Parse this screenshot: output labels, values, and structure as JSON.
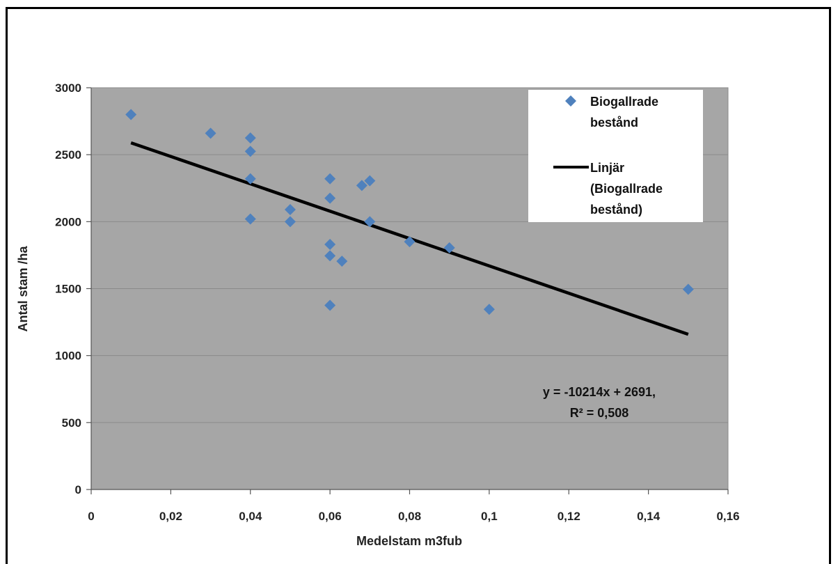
{
  "chart_data": {
    "type": "scatter",
    "title": "",
    "xlabel": "Medelstam m3fub",
    "ylabel": "Antal stam /ha",
    "xlim": [
      0,
      0.16
    ],
    "ylim": [
      0,
      3000
    ],
    "x_ticks": [
      0,
      0.02,
      0.04,
      0.06,
      0.08,
      0.1,
      0.12,
      0.14,
      0.16
    ],
    "x_tick_labels": [
      "0",
      "0,02",
      "0,04",
      "0,06",
      "0,08",
      "0,1",
      "0,12",
      "0,14",
      "0,16"
    ],
    "y_ticks": [
      0,
      500,
      1000,
      1500,
      2000,
      2500,
      3000
    ],
    "y_tick_labels": [
      "0",
      "500",
      "1000",
      "1500",
      "2000",
      "2500",
      "3000"
    ],
    "grid": "horizontal",
    "legend_position": "top-right",
    "plot_background": "#a6a6a6",
    "series": [
      {
        "name": "Biogallrade bestånd",
        "legend_lines": [
          "Biogallrade",
          "bestånd"
        ],
        "color": "#4f81bd",
        "marker": "diamond",
        "points": [
          [
            0.01,
            2800
          ],
          [
            0.03,
            2660
          ],
          [
            0.04,
            2625
          ],
          [
            0.04,
            2525
          ],
          [
            0.04,
            2320
          ],
          [
            0.04,
            2020
          ],
          [
            0.05,
            2090
          ],
          [
            0.05,
            2000
          ],
          [
            0.06,
            2320
          ],
          [
            0.06,
            2175
          ],
          [
            0.06,
            1830
          ],
          [
            0.06,
            1745
          ],
          [
            0.06,
            1375
          ],
          [
            0.063,
            1705
          ],
          [
            0.068,
            2270
          ],
          [
            0.07,
            2305
          ],
          [
            0.07,
            2000
          ],
          [
            0.08,
            1850
          ],
          [
            0.09,
            1805
          ],
          [
            0.1,
            1345
          ],
          [
            0.15,
            1495
          ]
        ]
      }
    ],
    "trendline": {
      "name": "Linjär (Biogallrade bestånd)",
      "legend_lines": [
        "Linjär",
        "(Biogallrade",
        "bestånd)"
      ],
      "color": "#000000",
      "slope": -10214,
      "intercept": 2691,
      "x_range": [
        0.01,
        0.15
      ],
      "equation_lines": [
        "y = -10214x + 2691,",
        "R² = 0,508"
      ]
    }
  }
}
